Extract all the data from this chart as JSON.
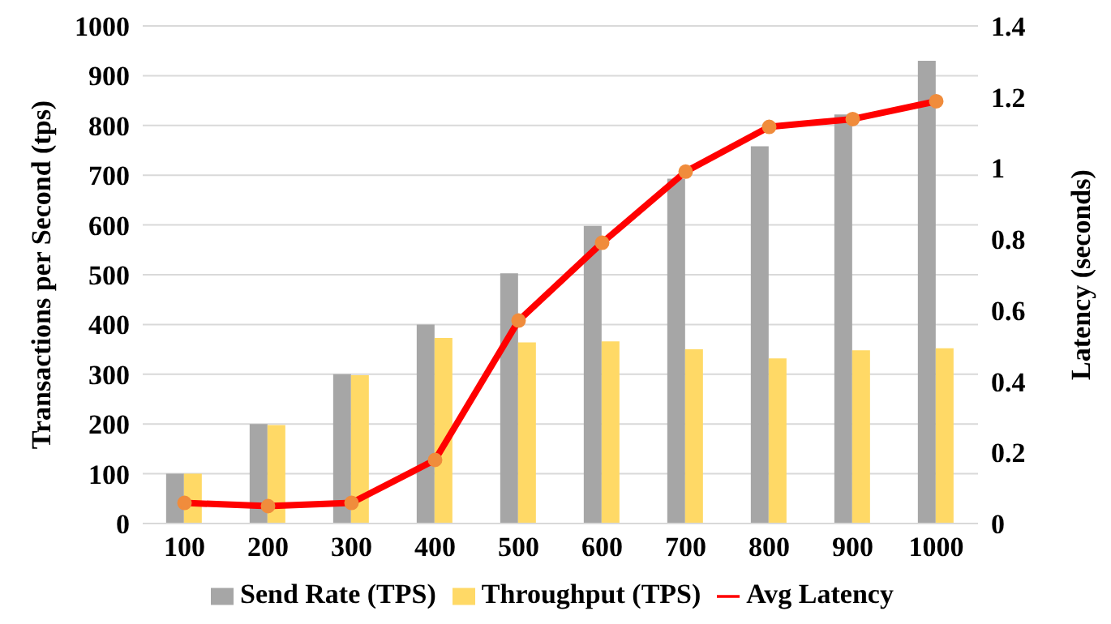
{
  "chart_data": {
    "type": "bar",
    "categories": [
      "100",
      "200",
      "300",
      "400",
      "500",
      "600",
      "700",
      "800",
      "900",
      "1000"
    ],
    "series": [
      {
        "name": "Send Rate (TPS)",
        "color": "#a6a6a6",
        "values": [
          100,
          200,
          300,
          400,
          503,
          598,
          693,
          758,
          822,
          930
        ]
      },
      {
        "name": "Throughput (TPS)",
        "color": "#ffd966",
        "values": [
          100,
          198,
          298,
          373,
          364,
          366,
          350,
          332,
          348,
          352
        ]
      },
      {
        "name": "Avg Latency",
        "type": "line",
        "axis": "y2",
        "color": "#ff0000",
        "marker": "circle",
        "values": [
          0.058,
          0.049,
          0.058,
          0.179,
          0.571,
          0.79,
          0.99,
          1.116,
          1.138,
          1.188
        ]
      }
    ],
    "ylabel": "Transactions per Second (tps)",
    "y2label": "Latency (seconds)",
    "ylim": [
      0,
      1000
    ],
    "yticks": [
      0,
      100,
      200,
      300,
      400,
      500,
      600,
      700,
      800,
      900,
      1000
    ],
    "y2lim": [
      0,
      1.4
    ],
    "y2ticks": [
      0,
      0.2,
      0.4,
      0.6,
      0.8,
      1,
      1.2,
      1.4
    ],
    "grid": "y",
    "legend": "bottom"
  }
}
